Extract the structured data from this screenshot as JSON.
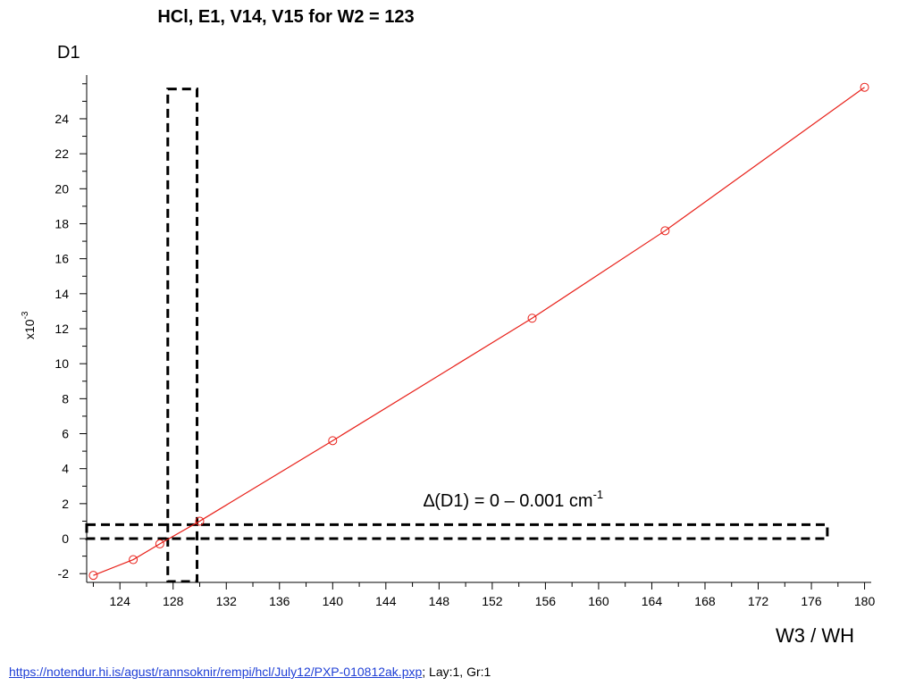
{
  "chart_data": {
    "type": "scatter",
    "title": "HCl, E1, V14, V15 for W2 = 123",
    "xlabel": "W3 / WH",
    "ylabel": "D1",
    "y_multiplier": "x10",
    "y_multiplier_exp": "-3",
    "xlim": [
      121.5,
      180.5
    ],
    "ylim": [
      -2.5,
      26.5
    ],
    "x_ticks": [
      124,
      128,
      132,
      136,
      140,
      144,
      148,
      152,
      156,
      160,
      164,
      168,
      172,
      176,
      180
    ],
    "y_ticks": [
      -2,
      0,
      2,
      4,
      6,
      8,
      10,
      12,
      14,
      16,
      18,
      20,
      22,
      24
    ],
    "grid": false,
    "series": [
      {
        "color": "#e8211a",
        "marker": "open-circle",
        "x": [
          122,
          125,
          127,
          130,
          140,
          155,
          165,
          180
        ],
        "y": [
          -2.1,
          -1.2,
          -0.3,
          1.0,
          5.6,
          12.6,
          17.6,
          25.8
        ]
      }
    ],
    "highlight_boxes": [
      {
        "x": [
          127.6,
          129.8
        ],
        "y": [
          -2.45,
          25.7
        ]
      },
      {
        "x": [
          121.5,
          177.2
        ],
        "y": [
          0.0,
          0.8
        ]
      }
    ],
    "annotation": {
      "delta": "∆",
      "text": "(D1) = 0 – 0.001 cm",
      "sup": "-1"
    }
  },
  "source": {
    "link": "https://notendur.hi.is/agust/rannsoknir/rempi/hcl/July12/PXP-010812ak.pxp",
    "suffix": "; Lay:1, Gr:1"
  }
}
